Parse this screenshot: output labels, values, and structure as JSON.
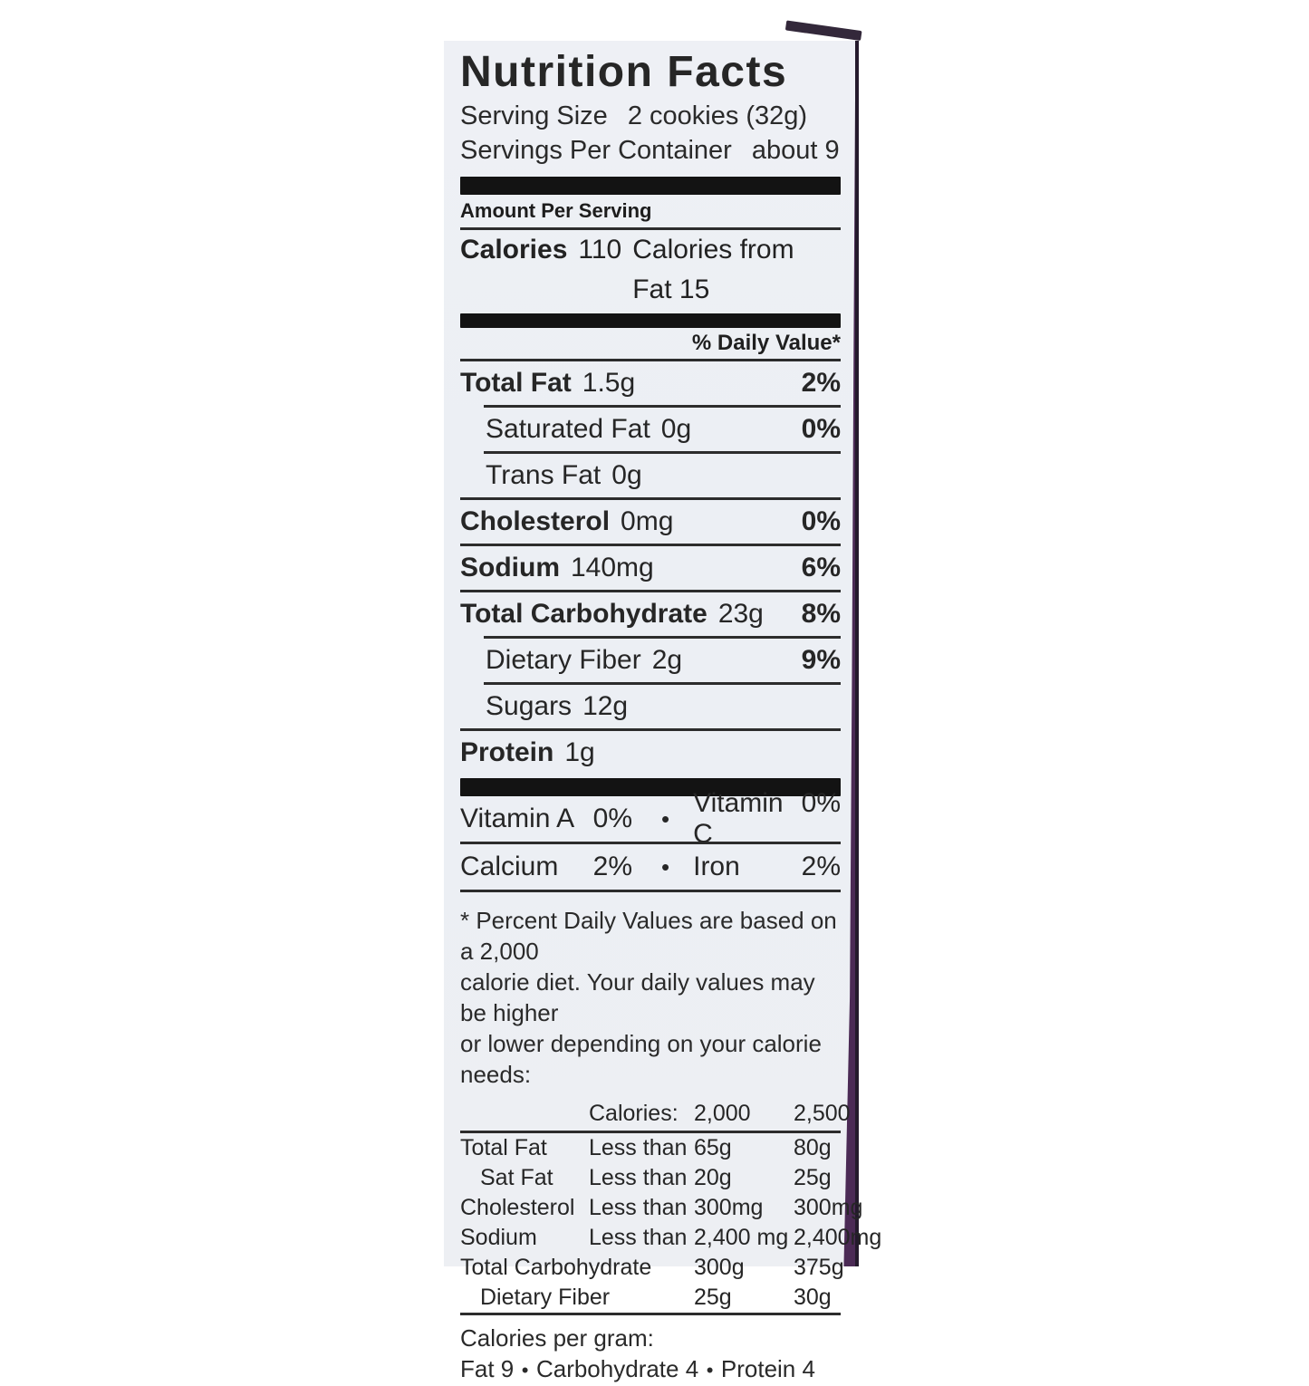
{
  "colors": {
    "label_background": "#edeff4",
    "text": "#262626",
    "package_purple": "#4b2a55",
    "package_edge": "#241a2c"
  },
  "label": {
    "title": "Nutrition Facts",
    "serving_size": {
      "label": "Serving Size",
      "value": "2 cookies (32g)"
    },
    "servings_per_container": {
      "label": "Servings Per Container",
      "value": "about 9"
    },
    "amount_per_serving": "Amount Per Serving",
    "calories": {
      "label": "Calories",
      "value": "110",
      "from_fat": "Calories from Fat 15"
    },
    "daily_value_header": "% Daily Value*",
    "bullet": "•",
    "nutrients": [
      {
        "name": "Total Fat",
        "amount": "1.5g",
        "dv": "2%"
      },
      {
        "name": "Saturated Fat",
        "amount": "0g",
        "dv": "0%"
      },
      {
        "name": "Trans Fat",
        "amount": "0g",
        "dv": ""
      },
      {
        "name": "Cholesterol",
        "amount": "0mg",
        "dv": "0%"
      },
      {
        "name": "Sodium",
        "amount": "140mg",
        "dv": "6%"
      },
      {
        "name": "Total Carbohydrate",
        "amount": "23g",
        "dv": "8%"
      },
      {
        "name": "Dietary Fiber",
        "amount": "2g",
        "dv": "9%"
      },
      {
        "name": "Sugars",
        "amount": "12g",
        "dv": ""
      },
      {
        "name": "Protein",
        "amount": "1g",
        "dv": ""
      }
    ],
    "vitamins": [
      {
        "left": "Vitamin A",
        "left_value": "0%",
        "right": "Vitamin C",
        "right_value": "0%"
      },
      {
        "left": "Calcium",
        "left_value": "2%",
        "right": "Iron",
        "right_value": "2%"
      }
    ],
    "footnote": {
      "lines": [
        "* Percent Daily Values are based on a 2,000",
        "calorie diet. Your daily values may be higher",
        "or lower depending on your calorie needs:"
      ]
    },
    "dv_table": {
      "header": {
        "label": "Calories:",
        "col1": "2,000",
        "col2": "2,500"
      },
      "rows": [
        {
          "name": "Total Fat",
          "cond": "Less than",
          "v1": "65g",
          "v2": "80g"
        },
        {
          "name": "Sat Fat",
          "cond": "Less than",
          "v1": "20g",
          "v2": "25g"
        },
        {
          "name": "Cholesterol",
          "cond": "Less than",
          "v1": "300mg",
          "v2": "300mg"
        },
        {
          "name": "Sodium",
          "cond": "Less than",
          "v1": "2,400 mg",
          "v2": "2,400mg"
        },
        {
          "name": "Total Carbohydrate",
          "cond": "",
          "v1": "300g",
          "v2": "375g"
        },
        {
          "name": "Dietary Fiber",
          "cond": "",
          "v1": "25g",
          "v2": "30g"
        }
      ]
    },
    "calories_per_gram": {
      "title": "Calories per gram:",
      "items": [
        "Fat 9",
        "Carbohydrate 4",
        "Protein 4"
      ]
    }
  }
}
